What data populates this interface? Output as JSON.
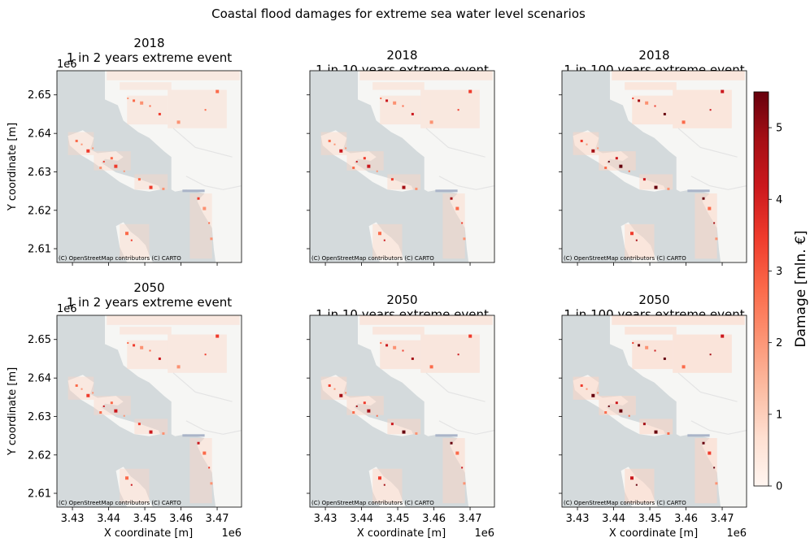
{
  "chart_data": {
    "type": "heatmap",
    "title": "Coastal flood damages for extreme sea water level scenarios",
    "xlabel": "X coordinate [m]",
    "ylabel": "Y coordinate [m]",
    "x_offset_label": "1e6",
    "y_offset_label": "1e6",
    "xlim": [
      3.425,
      3.474
    ],
    "ylim": [
      2.607,
      2.657
    ],
    "x_ticks": [
      "3.43",
      "3.44",
      "3.45",
      "3.46",
      "3.47"
    ],
    "y_ticks": [
      "2.65",
      "2.64",
      "2.63",
      "2.62",
      "2.61"
    ],
    "attribution": "(C) OpenStreetMap contributors (C) CARTO",
    "grid": false,
    "colormap": "Reds",
    "colorbar": {
      "label": "Damage [mln. €]",
      "min": 0,
      "max": 5.5,
      "ticks": [
        "0",
        "1",
        "2",
        "3",
        "4",
        "5"
      ]
    },
    "panels": [
      {
        "year": "2018",
        "scenario": "1 in 2 years extreme event",
        "title_lines": [
          "2018",
          "1 in 2 years extreme event"
        ],
        "intensity": 0.35
      },
      {
        "year": "2018",
        "scenario": "1 in 10 years extreme event",
        "title_lines": [
          "2018",
          "1 in 10 years extreme event"
        ],
        "intensity": 0.55
      },
      {
        "year": "2018",
        "scenario": "1 in 100 years extreme event",
        "title_lines": [
          "2018",
          "1 in 100 years extreme event"
        ],
        "intensity": 0.8
      },
      {
        "year": "2050",
        "scenario": "1 in 2 years extreme event",
        "title_lines": [
          "2050",
          "1 in 2 years extreme event"
        ],
        "intensity": 0.5
      },
      {
        "year": "2050",
        "scenario": "1 in 10 years extreme event",
        "title_lines": [
          "2050",
          "1 in 10 years extreme event"
        ],
        "intensity": 0.7
      },
      {
        "year": "2050",
        "scenario": "1 in 100 years extreme event",
        "title_lines": [
          "2050",
          "1 in 100 years extreme event"
        ],
        "intensity": 0.95
      }
    ]
  }
}
